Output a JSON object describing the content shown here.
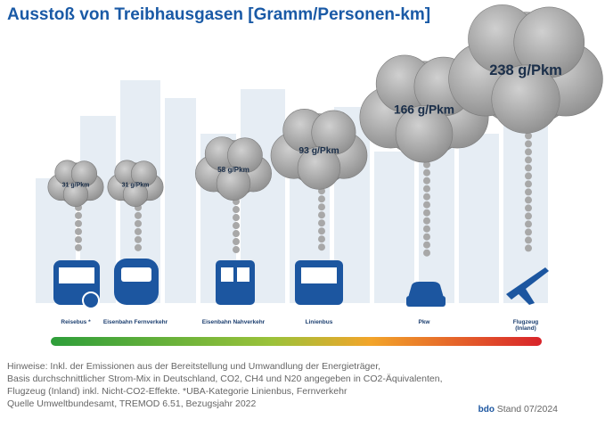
{
  "chart_data": {
    "type": "cloud",
    "title": "Ausstoß von Treibhausgasen [Gramm/Personen-km]",
    "categories": [
      "Reisebus *",
      "Eisenbahn Fernverkehr",
      "Eisenbahn Nahverkehr",
      "Linienbus",
      "Pkw",
      "Flugzeug (Inland)"
    ],
    "values": [
      31,
      31,
      58,
      93,
      166,
      238
    ],
    "value_labels": [
      "31 g/Pkm",
      "31 g/Pkm",
      "58 g/Pkm",
      "93 g/Pkm",
      "166 g/Pkm",
      "238 g/Pkm"
    ],
    "color": "#9c9c9c",
    "notes": [
      "Hinweise: Inkl. der Emissionen aus der Bereitstellung und Umwandlung der Energieträger,",
      "Basis durchschnittlicher Strom-Mix in Deutschland, CO2, CH4 und N20 angegeben in CO2-Äquivalenten,",
      "Flugzeug (Inland) inkl. Nicht-CO2-Effekte. *UBA-Kategorie Linienbus, Fernverkehr",
      "Quelle Umweltbundesamt, TREMOD 6.51, Bezugsjahr 2022"
    ],
    "logo": "bdo",
    "stand": "Stand 07/2024"
  }
}
